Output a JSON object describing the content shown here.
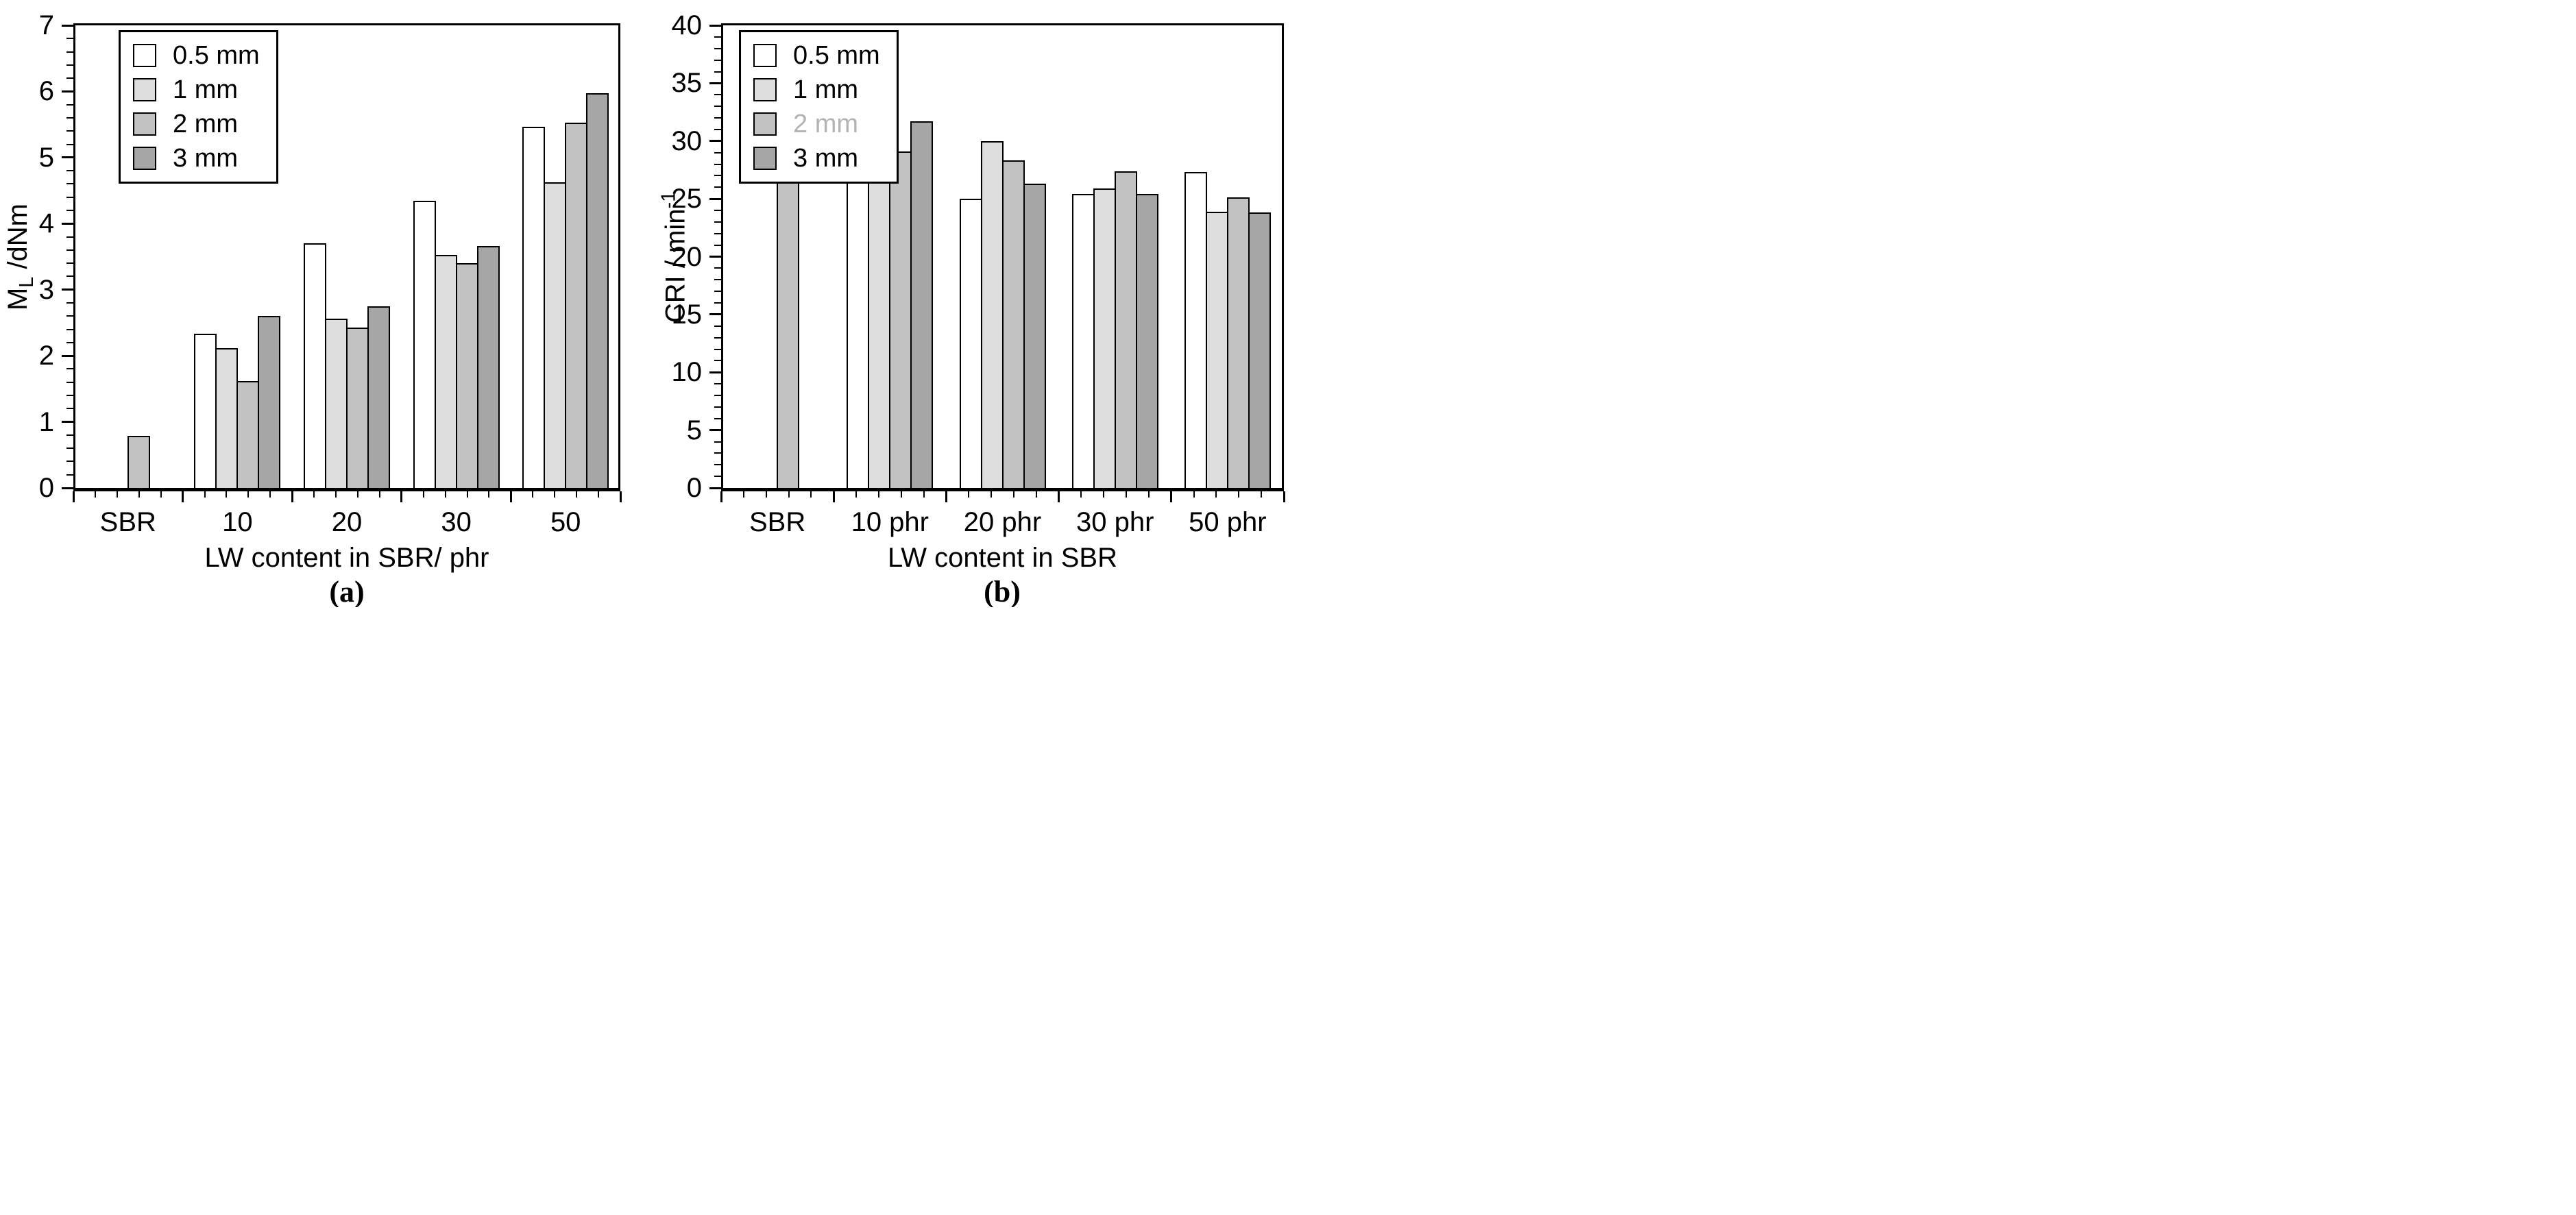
{
  "figure": {
    "background": "#ffffff",
    "bar_outline_color": "#000000",
    "axis_color": "#000000"
  },
  "chart_data": [
    {
      "type": "bar",
      "panel_label": "(a)",
      "ylabel_main": "M",
      "ylabel_sub": "L",
      "ylabel_rest": " /dNm",
      "xlabel": "LW content in SBR/ phr",
      "ylim": [
        0,
        7
      ],
      "ytick_step": 1,
      "yminor_step": 0.2,
      "ytick_labels": [
        "0",
        "1",
        "2",
        "3",
        "4",
        "5",
        "6",
        "7"
      ],
      "categories": [
        "SBR",
        "10",
        "20",
        "30",
        "50"
      ],
      "legend_position": "top-left",
      "grid": false,
      "series": [
        {
          "name": "0.5 mm",
          "color": "#ffffff",
          "values": [
            null,
            2.33,
            3.7,
            4.35,
            5.47
          ]
        },
        {
          "name": "1 mm",
          "color": "#dedede",
          "values": [
            null,
            2.12,
            2.56,
            3.53,
            4.63
          ]
        },
        {
          "name": "2 mm",
          "color": "#c2c2c2",
          "values": [
            0.79,
            1.62,
            2.43,
            3.4,
            5.53
          ]
        },
        {
          "name": "3 mm",
          "color": "#a6a6a6",
          "values": [
            null,
            2.6,
            2.75,
            3.66,
            5.97
          ]
        }
      ]
    },
    {
      "type": "bar",
      "panel_label": "(b)",
      "ylabel_main": "CRI / min",
      "ylabel_sup": "-1",
      "xlabel": "LW content in SBR",
      "ylim": [
        0,
        40
      ],
      "ytick_step": 5,
      "yminor_step": 1,
      "ytick_labels": [
        "0",
        "5",
        "10",
        "15",
        "20",
        "25",
        "30",
        "35",
        "40"
      ],
      "categories": [
        "SBR",
        "10 phr",
        "20 phr",
        "30 phr",
        "50 phr"
      ],
      "legend_position": "top-left",
      "grid": false,
      "series": [
        {
          "name": "0.5 mm",
          "color": "#ffffff",
          "values": [
            null,
            27.1,
            25.0,
            25.4,
            27.3
          ]
        },
        {
          "name": "1 mm",
          "color": "#dedede",
          "values": [
            null,
            27.1,
            30.0,
            25.9,
            23.9
          ]
        },
        {
          "name": "2 mm",
          "color": "#c2c2c2",
          "legend_label_color": "#b3b3b3",
          "values": [
            27.4,
            29.1,
            28.3,
            27.4,
            25.1
          ]
        },
        {
          "name": "3 mm",
          "color": "#a6a6a6",
          "values": [
            null,
            31.7,
            26.3,
            25.4,
            23.8
          ]
        }
      ]
    }
  ]
}
